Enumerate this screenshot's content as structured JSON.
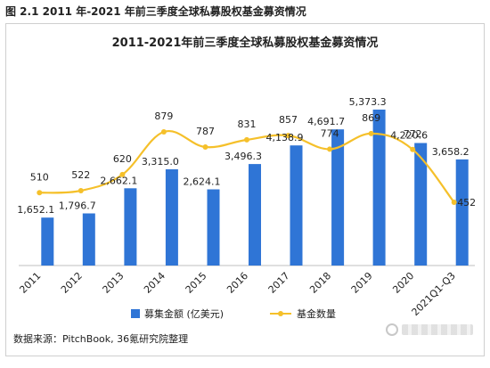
{
  "figure_caption": "图 2.1 2011 年-2021 年前三季度全球私募股权基金募资情况",
  "source_note": "数据来源：PitchBook, 36氪研究院整理",
  "colors": {
    "bar": "#2f75d6",
    "line": "#f5c02a",
    "axis": "#bfbfbf",
    "text": "#222222"
  },
  "chart_data": {
    "type": "bar",
    "title": "2011-2021年前三季度全球私募股权基金募资情况",
    "categories": [
      "2011",
      "2012",
      "2013",
      "2014",
      "2015",
      "2016",
      "2017",
      "2018",
      "2019",
      "2020",
      "2021Q1-Q3"
    ],
    "series": [
      {
        "name": "募集金额 (亿美元)",
        "type": "bar",
        "values": [
          1652.1,
          1796.7,
          2662.1,
          3315.0,
          2624.1,
          3496.3,
          4138.9,
          4691.7,
          5373.3,
          4220.6,
          3658.2
        ],
        "labels": [
          "1,652.1",
          "1,796.7",
          "2,662.1",
          "3,315.0",
          "2,624.1",
          "3,496.3",
          "4,138.9",
          "4,691.7",
          "5,373.3",
          "4,220.6",
          "3,658.2"
        ]
      },
      {
        "name": "基金数量",
        "type": "line",
        "values": [
          510,
          522,
          620,
          879,
          787,
          831,
          857,
          774,
          869,
          772,
          452
        ],
        "labels": [
          "510",
          "522",
          "620",
          "879",
          "787",
          "831",
          "857",
          "774",
          "869",
          "772",
          "452"
        ]
      }
    ],
    "legend": "bottom",
    "grid": false
  }
}
